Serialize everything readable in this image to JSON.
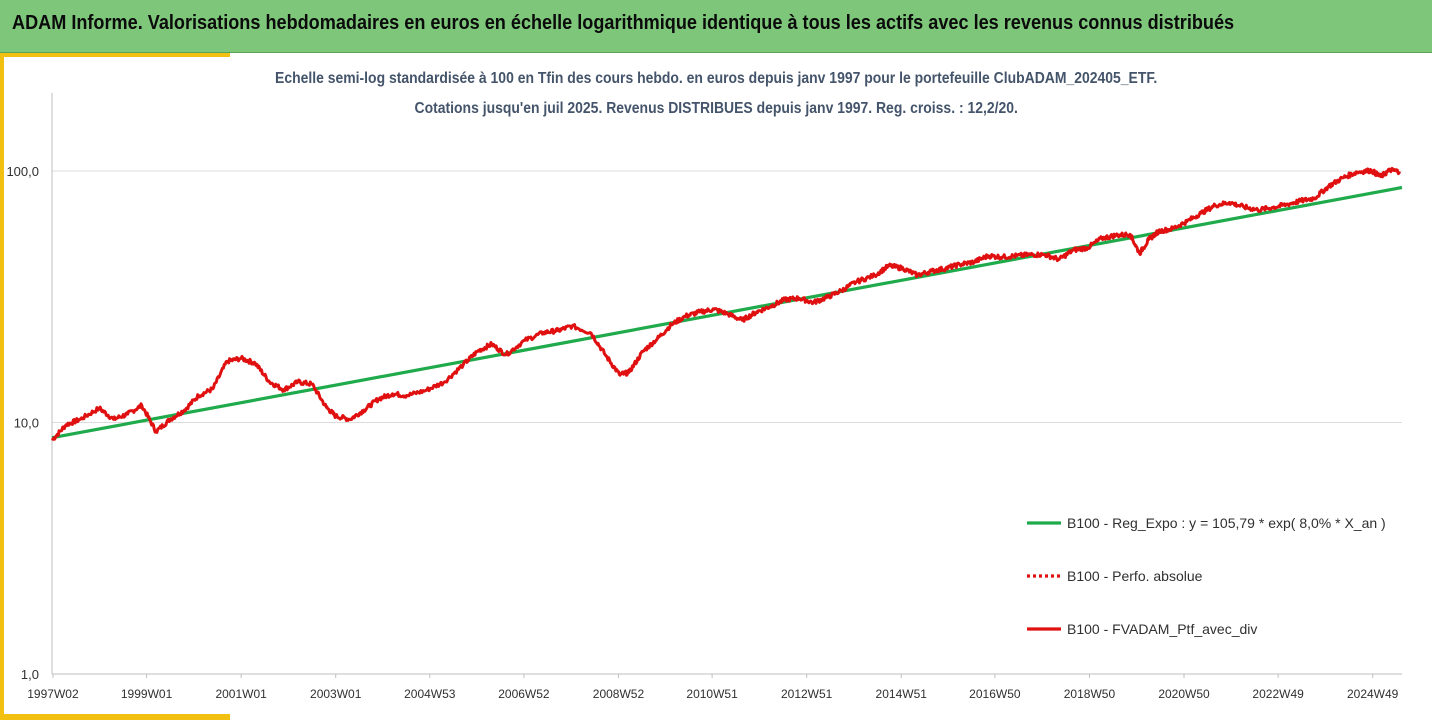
{
  "header": {
    "title": "ADAM Informe. Valorisations hebdomadaires en euros en échelle logarithmique identique à tous les actifs avec les revenus connus distribués"
  },
  "chart_data": {
    "type": "line",
    "title_line1": "Echelle semi-log standardisée  à 100 en Tfin des cours hebdo.  en euros depuis janv 1997 pour le portefeuille ClubADAM_202405_ETF.",
    "title_line2": "Cotations  jusqu'en juil 2025. Revenus DISTRIBUES depuis janv 1997. Reg. croiss. : 12,2/20.",
    "y_scale": "log",
    "ylim": [
      1,
      200
    ],
    "yticks": [
      1,
      10,
      100
    ],
    "ytick_labels": [
      "1,0",
      "10,0",
      "100,0"
    ],
    "xlim": [
      1997.0,
      2025.55
    ],
    "xtick_labels": [
      "1997W02",
      "1999W01",
      "2001W01",
      "2003W01",
      "2004W53",
      "2006W52",
      "2008W52",
      "2010W51",
      "2012W51",
      "2014W51",
      "2016W50",
      "2018W50",
      "2020W50",
      "2022W49",
      "2024W49"
    ],
    "xtick_years": [
      1997.02,
      1999.0,
      2001.0,
      2003.0,
      2004.99,
      2006.98,
      2008.98,
      2010.96,
      2012.96,
      2014.96,
      2016.94,
      2018.94,
      2020.94,
      2022.93,
      2024.93
    ],
    "grid": {
      "horizontal": true,
      "vertical": false
    },
    "legend_position": "bottom-right",
    "series": [
      {
        "name": "B100 - Reg_Expo : y = 105,79 * exp( 8,0% *  X_an )",
        "color": "#1faa4b",
        "style": "solid",
        "x": [
          1997.0,
          2025.55
        ],
        "values": [
          8.7,
          86.0
        ]
      },
      {
        "name": "B100 - Perfo. absolue",
        "color": "#e01010",
        "style": "dotted",
        "x": [],
        "values": []
      },
      {
        "name": "B100 - FVADAM_Ptf_avec_div",
        "color": "#e01010",
        "style": "solid",
        "x": [
          1997.0,
          1997.3,
          1997.6,
          1998.0,
          1998.3,
          1998.6,
          1998.9,
          1999.2,
          1999.5,
          1999.8,
          2000.1,
          2000.4,
          2000.7,
          2001.0,
          2001.3,
          2001.6,
          2001.9,
          2002.2,
          2002.5,
          2002.8,
          2003.0,
          2003.3,
          2003.6,
          2003.9,
          2004.2,
          2004.5,
          2004.9,
          2005.3,
          2005.7,
          2006.0,
          2006.3,
          2006.6,
          2007.0,
          2007.4,
          2007.7,
          2008.0,
          2008.4,
          2008.7,
          2009.0,
          2009.2,
          2009.5,
          2009.8,
          2010.1,
          2010.4,
          2010.7,
          2011.0,
          2011.3,
          2011.6,
          2011.9,
          2012.2,
          2012.5,
          2012.8,
          2013.1,
          2013.4,
          2013.7,
          2014.0,
          2014.4,
          2014.7,
          2015.0,
          2015.3,
          2015.6,
          2015.9,
          2016.2,
          2016.5,
          2016.8,
          2017.1,
          2017.4,
          2017.7,
          2018.0,
          2018.3,
          2018.6,
          2018.9,
          2019.2,
          2019.5,
          2019.8,
          2020.0,
          2020.2,
          2020.4,
          2020.7,
          2021.0,
          2021.3,
          2021.6,
          2021.9,
          2022.2,
          2022.5,
          2022.8,
          2023.1,
          2023.4,
          2023.7,
          2024.0,
          2024.3,
          2024.6,
          2024.9,
          2025.1,
          2025.3,
          2025.5
        ],
        "values": [
          8.5,
          9.8,
          10.3,
          11.4,
          10.3,
          10.8,
          11.7,
          9.2,
          10.3,
          11.2,
          12.8,
          13.6,
          17.5,
          18.0,
          17.2,
          14.5,
          13.5,
          14.5,
          14.2,
          11.5,
          10.6,
          10.3,
          11.2,
          12.4,
          13.0,
          12.8,
          13.4,
          14.5,
          17.0,
          19.2,
          20.5,
          18.6,
          21.2,
          22.8,
          23.2,
          24.2,
          22.7,
          18.6,
          15.5,
          15.8,
          19.2,
          21.5,
          24.5,
          26.5,
          27.5,
          28.2,
          27.0,
          25.5,
          27.5,
          29.0,
          30.8,
          31.2,
          30.0,
          31.5,
          33.5,
          36.2,
          38.5,
          42.0,
          41.0,
          38.5,
          40.0,
          41.0,
          42.5,
          43.5,
          46.0,
          45.5,
          46.0,
          46.5,
          46.5,
          44.5,
          48.5,
          49.5,
          54.0,
          55.5,
          56.0,
          47.0,
          53.5,
          57.5,
          59.0,
          63.0,
          68.0,
          73.0,
          75.0,
          72.0,
          70.0,
          71.5,
          73.5,
          76.0,
          78.0,
          87.0,
          94.0,
          99.0,
          100.5,
          95.0,
          101.0,
          99.5
        ]
      }
    ]
  }
}
